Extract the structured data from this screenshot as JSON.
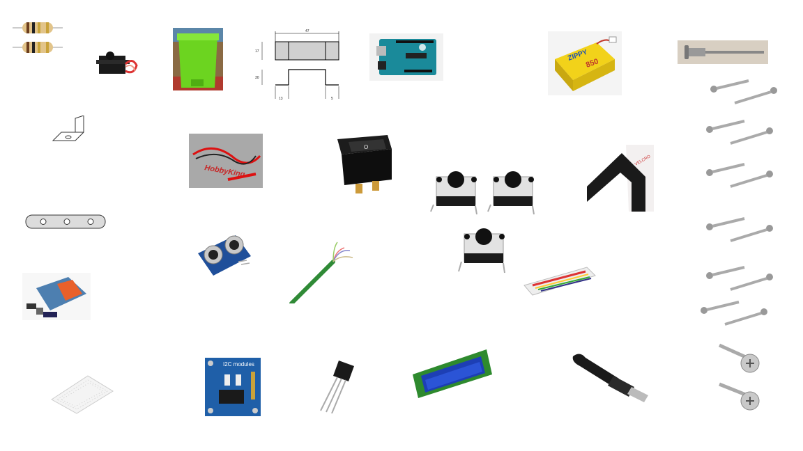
{
  "drawing_dims": {
    "width": "47",
    "height_top": "17",
    "height_bottom": "30",
    "left_gap": "13",
    "right_gap": "5"
  },
  "labels": {
    "lipo_brand": "ZIPPY",
    "lipo_capacity": "850",
    "wire_bag_text": "HobbyKing",
    "switch_mark": "O",
    "rtc_label": "I2C modules",
    "velcro_text": "VELCRO"
  },
  "colors": {
    "bin": "#6cd420",
    "arduino": "#1a8a9a",
    "lipo": "#f2d21a",
    "lcd": "#1d3fb5",
    "rtc": "#1f5fa8",
    "wire": "#2f8a36"
  }
}
